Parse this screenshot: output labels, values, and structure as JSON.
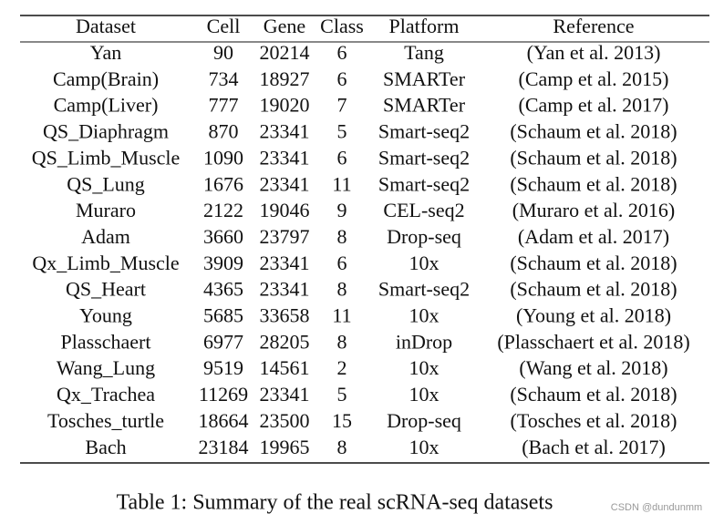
{
  "table": {
    "header": [
      "Dataset",
      "Cell",
      "Gene",
      "Class",
      "Platform",
      "Reference"
    ],
    "rows": [
      [
        "Yan",
        90,
        20214,
        6,
        "Tang",
        "(Yan et al. 2013)"
      ],
      [
        "Camp(Brain)",
        734,
        18927,
        6,
        "SMARTer",
        "(Camp et al. 2015)"
      ],
      [
        "Camp(Liver)",
        777,
        19020,
        7,
        "SMARTer",
        "(Camp et al. 2017)"
      ],
      [
        "QS_Diaphragm",
        870,
        23341,
        5,
        "Smart-seq2",
        "(Schaum et al. 2018)"
      ],
      [
        "QS_Limb_Muscle",
        1090,
        23341,
        6,
        "Smart-seq2",
        "(Schaum et al. 2018)"
      ],
      [
        "QS_Lung",
        1676,
        23341,
        11,
        "Smart-seq2",
        "(Schaum et al. 2018)"
      ],
      [
        "Muraro",
        2122,
        19046,
        9,
        "CEL-seq2",
        "(Muraro et al. 2016)"
      ],
      [
        "Adam",
        3660,
        23797,
        8,
        "Drop-seq",
        "(Adam et al. 2017)"
      ],
      [
        "Qx_Limb_Muscle",
        3909,
        23341,
        6,
        "10x",
        "(Schaum et al. 2018)"
      ],
      [
        "QS_Heart",
        4365,
        23341,
        8,
        "Smart-seq2",
        "(Schaum et al. 2018)"
      ],
      [
        "Young",
        5685,
        33658,
        11,
        "10x",
        "(Young et al. 2018)"
      ],
      [
        "Plasschaert",
        6977,
        28205,
        8,
        "inDrop",
        "(Plasschaert et al. 2018)"
      ],
      [
        "Wang_Lung",
        9519,
        14561,
        2,
        "10x",
        "(Wang et al. 2018)"
      ],
      [
        "Qx_Trachea",
        11269,
        23341,
        5,
        "10x",
        "(Schaum et al. 2018)"
      ],
      [
        "Tosches_turtle",
        18664,
        23500,
        15,
        "Drop-seq",
        "(Tosches et al. 2018)"
      ],
      [
        "Bach",
        23184,
        19965,
        8,
        "10x",
        "(Bach et al. 2017)"
      ]
    ],
    "caption": "Table 1: Summary of the real scRNA-seq datasets"
  },
  "watermark": "CSDN @dundunmm"
}
